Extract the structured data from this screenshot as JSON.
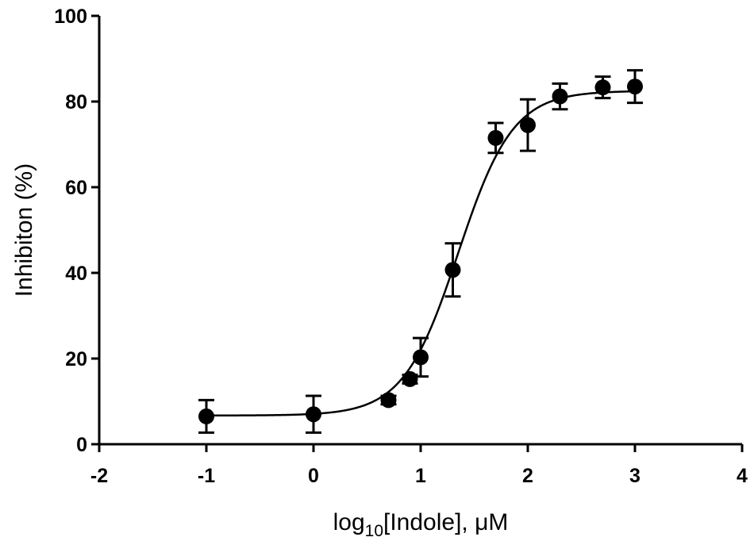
{
  "chart_data": {
    "type": "scatter",
    "title": "",
    "xlabel": {
      "base": "log",
      "subscript": "10",
      "rest": "[Indole], μM"
    },
    "ylabel": "Inhibiton (%)",
    "xlim": [
      -2,
      4
    ],
    "ylim": [
      0,
      100
    ],
    "x_ticks": [
      -2,
      -1,
      0,
      1,
      2,
      3,
      4
    ],
    "y_ticks": [
      0,
      20,
      40,
      60,
      80,
      100
    ],
    "grid": false,
    "series": [
      {
        "points": [
          {
            "x": -1,
            "y": 6.5,
            "err": 3.8
          },
          {
            "x": 0,
            "y": 7.0,
            "err": 4.3
          },
          {
            "x": 0.7,
            "y": 10.3,
            "err": 1.0
          },
          {
            "x": 0.9,
            "y": 15.2,
            "err": 1.0
          },
          {
            "x": 1.0,
            "y": 20.3,
            "err": 4.5
          },
          {
            "x": 1.3,
            "y": 40.7,
            "err": 6.2
          },
          {
            "x": 1.7,
            "y": 71.5,
            "err": 3.5
          },
          {
            "x": 2.0,
            "y": 74.5,
            "err": 6.0
          },
          {
            "x": 2.3,
            "y": 81.2,
            "err": 3.0
          },
          {
            "x": 2.7,
            "y": 83.3,
            "err": 2.5
          },
          {
            "x": 3.0,
            "y": 83.5,
            "err": 3.8
          }
        ],
        "fit": {
          "bottom": 6.7,
          "top": 82.5,
          "log_ec50": 1.35,
          "hill_slope": 1.7,
          "x_range": [
            -1,
            3
          ]
        }
      }
    ],
    "colors": {
      "points": "#000000",
      "line": "#000000"
    }
  }
}
